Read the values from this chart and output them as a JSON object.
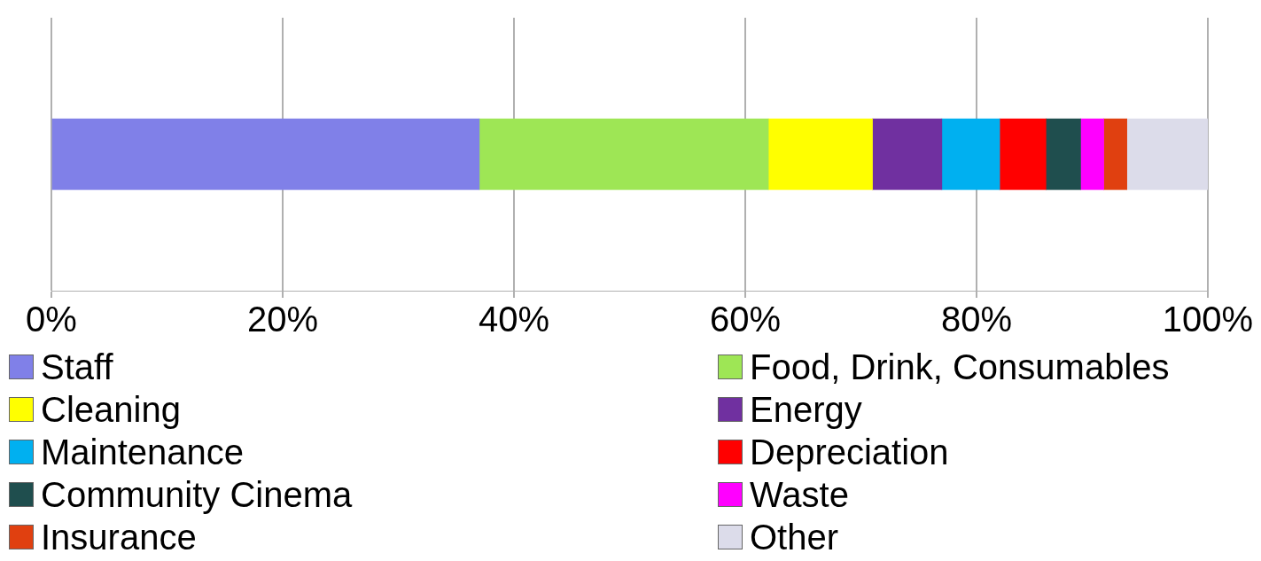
{
  "chart_data": {
    "type": "bar",
    "orientation": "horizontal",
    "stacked": true,
    "categories": [
      null
    ],
    "series": [
      {
        "name": "Staff",
        "color": "#8080e8",
        "values": [
          37
        ]
      },
      {
        "name": "Food, Drink, Consumables",
        "color": "#9ee655",
        "values": [
          25
        ]
      },
      {
        "name": "Cleaning",
        "color": "#ffff00",
        "values": [
          9
        ]
      },
      {
        "name": "Energy",
        "color": "#7030a0",
        "values": [
          6
        ]
      },
      {
        "name": "Maintenance",
        "color": "#00b0f0",
        "values": [
          5
        ]
      },
      {
        "name": "Depreciation",
        "color": "#ff0000",
        "values": [
          4
        ]
      },
      {
        "name": "Community Cinema",
        "color": "#1f4e4e",
        "values": [
          3
        ]
      },
      {
        "name": "Waste",
        "color": "#ff00ff",
        "values": [
          2
        ]
      },
      {
        "name": "Insurance",
        "color": "#e04010",
        "values": [
          2
        ]
      },
      {
        "name": "Other",
        "color": "#dcdcea",
        "values": [
          7
        ]
      }
    ],
    "xlim": [
      0,
      100
    ],
    "xticks": [
      {
        "value": 0,
        "label": "0%"
      },
      {
        "value": 20,
        "label": "20%"
      },
      {
        "value": 40,
        "label": "40%"
      },
      {
        "value": 60,
        "label": "60%"
      },
      {
        "value": 80,
        "label": "80%"
      },
      {
        "value": 100,
        "label": "100%"
      }
    ],
    "grid": "x",
    "legend": "bottom"
  }
}
